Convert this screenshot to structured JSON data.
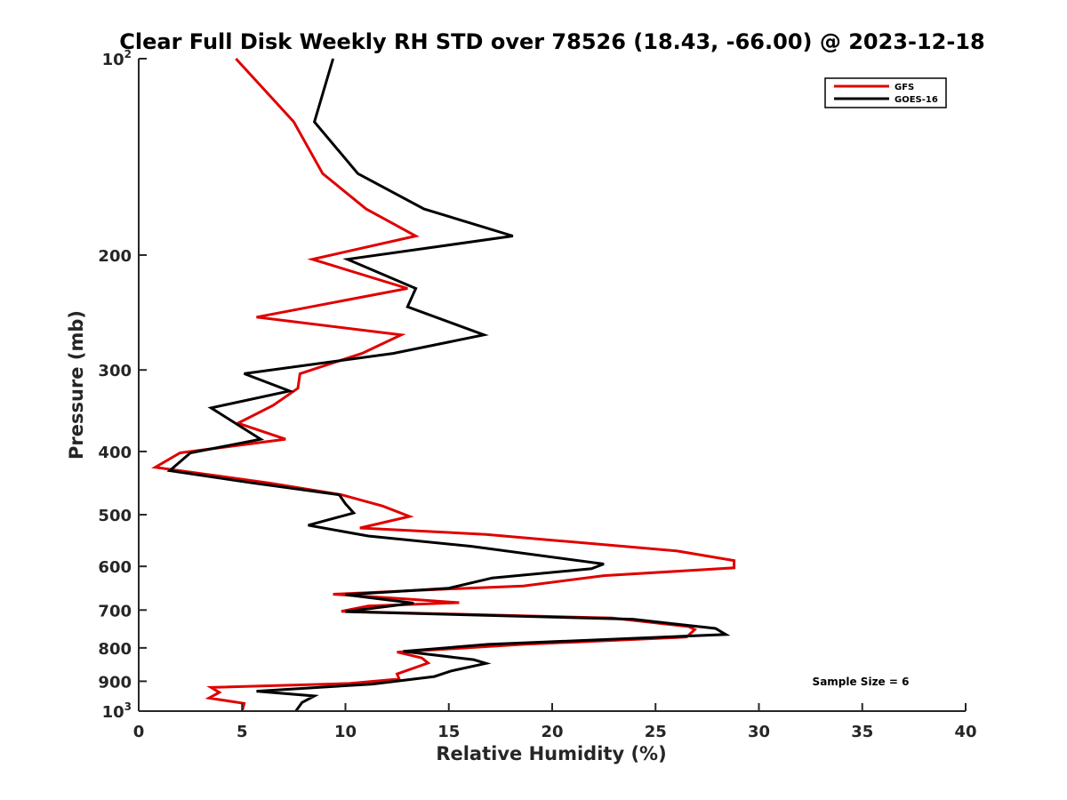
{
  "chart_data": {
    "type": "line",
    "title": "Clear Full Disk Weekly RH STD over 78526 (18.43, -66.00) @ 2023-12-18",
    "xlabel": "Relative Humidity (%)",
    "ylabel": "Pressure (mb)",
    "xlim": [
      0,
      40
    ],
    "ylim": [
      100,
      1000
    ],
    "y_scale": "log",
    "y_reversed": true,
    "x_ticks": [
      "0",
      "5",
      "10",
      "15",
      "20",
      "25",
      "30",
      "35",
      "40"
    ],
    "y_ticks": [
      {
        "value": 100,
        "base": "10",
        "exp": "2"
      },
      {
        "value": 200,
        "label": "200"
      },
      {
        "value": 300,
        "label": "300"
      },
      {
        "value": 400,
        "label": "400"
      },
      {
        "value": 500,
        "label": "500"
      },
      {
        "value": 600,
        "label": "600"
      },
      {
        "value": 700,
        "label": "700"
      },
      {
        "value": 800,
        "label": "800"
      },
      {
        "value": 900,
        "label": "900"
      },
      {
        "value": 1000,
        "base": "10",
        "exp": "3"
      }
    ],
    "legend_position": "top-right",
    "annotation": "Sample Size = 6",
    "series": [
      {
        "name": "GFS",
        "color": "#e00000",
        "points": [
          [
            4.7,
            100
          ],
          [
            7.5,
            125
          ],
          [
            8.9,
            150
          ],
          [
            11.0,
            170
          ],
          [
            13.4,
            187
          ],
          [
            8.4,
            203
          ],
          [
            13.0,
            225
          ],
          [
            5.7,
            249
          ],
          [
            12.7,
            265
          ],
          [
            10.8,
            283
          ],
          [
            7.8,
            304
          ],
          [
            7.7,
            320
          ],
          [
            6.5,
            340
          ],
          [
            4.8,
            362
          ],
          [
            7.1,
            383
          ],
          [
            2.0,
            402
          ],
          [
            0.8,
            423
          ],
          [
            6.3,
            447
          ],
          [
            9.8,
            466
          ],
          [
            11.8,
            485
          ],
          [
            13.1,
            503
          ],
          [
            10.7,
            524
          ],
          [
            16.8,
            536
          ],
          [
            20.0,
            547
          ],
          [
            26.0,
            568
          ],
          [
            28.8,
            588
          ],
          [
            28.8,
            603
          ],
          [
            22.5,
            620
          ],
          [
            18.6,
            643
          ],
          [
            15.4,
            649
          ],
          [
            9.4,
            662
          ],
          [
            13.2,
            674
          ],
          [
            15.5,
            682
          ],
          [
            11.1,
            690
          ],
          [
            9.8,
            703
          ],
          [
            22.9,
            720
          ],
          [
            26.6,
            742
          ],
          [
            26.9,
            750
          ],
          [
            26.5,
            770
          ],
          [
            18.6,
            790
          ],
          [
            12.5,
            812
          ],
          [
            13.7,
            829
          ],
          [
            14.0,
            844
          ],
          [
            12.5,
            877
          ],
          [
            12.6,
            893
          ],
          [
            10.2,
            907
          ],
          [
            3.5,
            920
          ],
          [
            3.9,
            936
          ],
          [
            3.4,
            955
          ],
          [
            5.1,
            973
          ],
          [
            5.0,
            1000
          ]
        ]
      },
      {
        "name": "GOES-16",
        "color": "#000000",
        "points": [
          [
            9.4,
            100
          ],
          [
            8.5,
            125
          ],
          [
            10.6,
            150
          ],
          [
            13.8,
            170
          ],
          [
            18.1,
            187
          ],
          [
            10.1,
            203
          ],
          [
            13.4,
            225
          ],
          [
            13.0,
            240
          ],
          [
            16.7,
            265
          ],
          [
            12.3,
            283
          ],
          [
            5.1,
            304
          ],
          [
            7.3,
            323
          ],
          [
            3.5,
            343
          ],
          [
            5.9,
            383
          ],
          [
            2.5,
            402
          ],
          [
            1.5,
            428
          ],
          [
            5.5,
            447
          ],
          [
            9.7,
            466
          ],
          [
            10.0,
            481
          ],
          [
            10.4,
            497
          ],
          [
            8.2,
            519
          ],
          [
            11.1,
            539
          ],
          [
            16.1,
            559
          ],
          [
            22.5,
            595
          ],
          [
            21.9,
            605
          ],
          [
            17.1,
            625
          ],
          [
            15.0,
            648
          ],
          [
            10.0,
            663
          ],
          [
            13.3,
            683
          ],
          [
            10.0,
            704
          ],
          [
            23.9,
            723
          ],
          [
            27.9,
            747
          ],
          [
            28.4,
            763
          ],
          [
            16.9,
            790
          ],
          [
            12.8,
            810
          ],
          [
            16.2,
            834
          ],
          [
            16.8,
            845
          ],
          [
            15.1,
            868
          ],
          [
            14.3,
            885
          ],
          [
            11.3,
            909
          ],
          [
            5.7,
            932
          ],
          [
            8.5,
            948
          ],
          [
            7.9,
            970
          ],
          [
            7.6,
            1000
          ]
        ]
      }
    ]
  }
}
